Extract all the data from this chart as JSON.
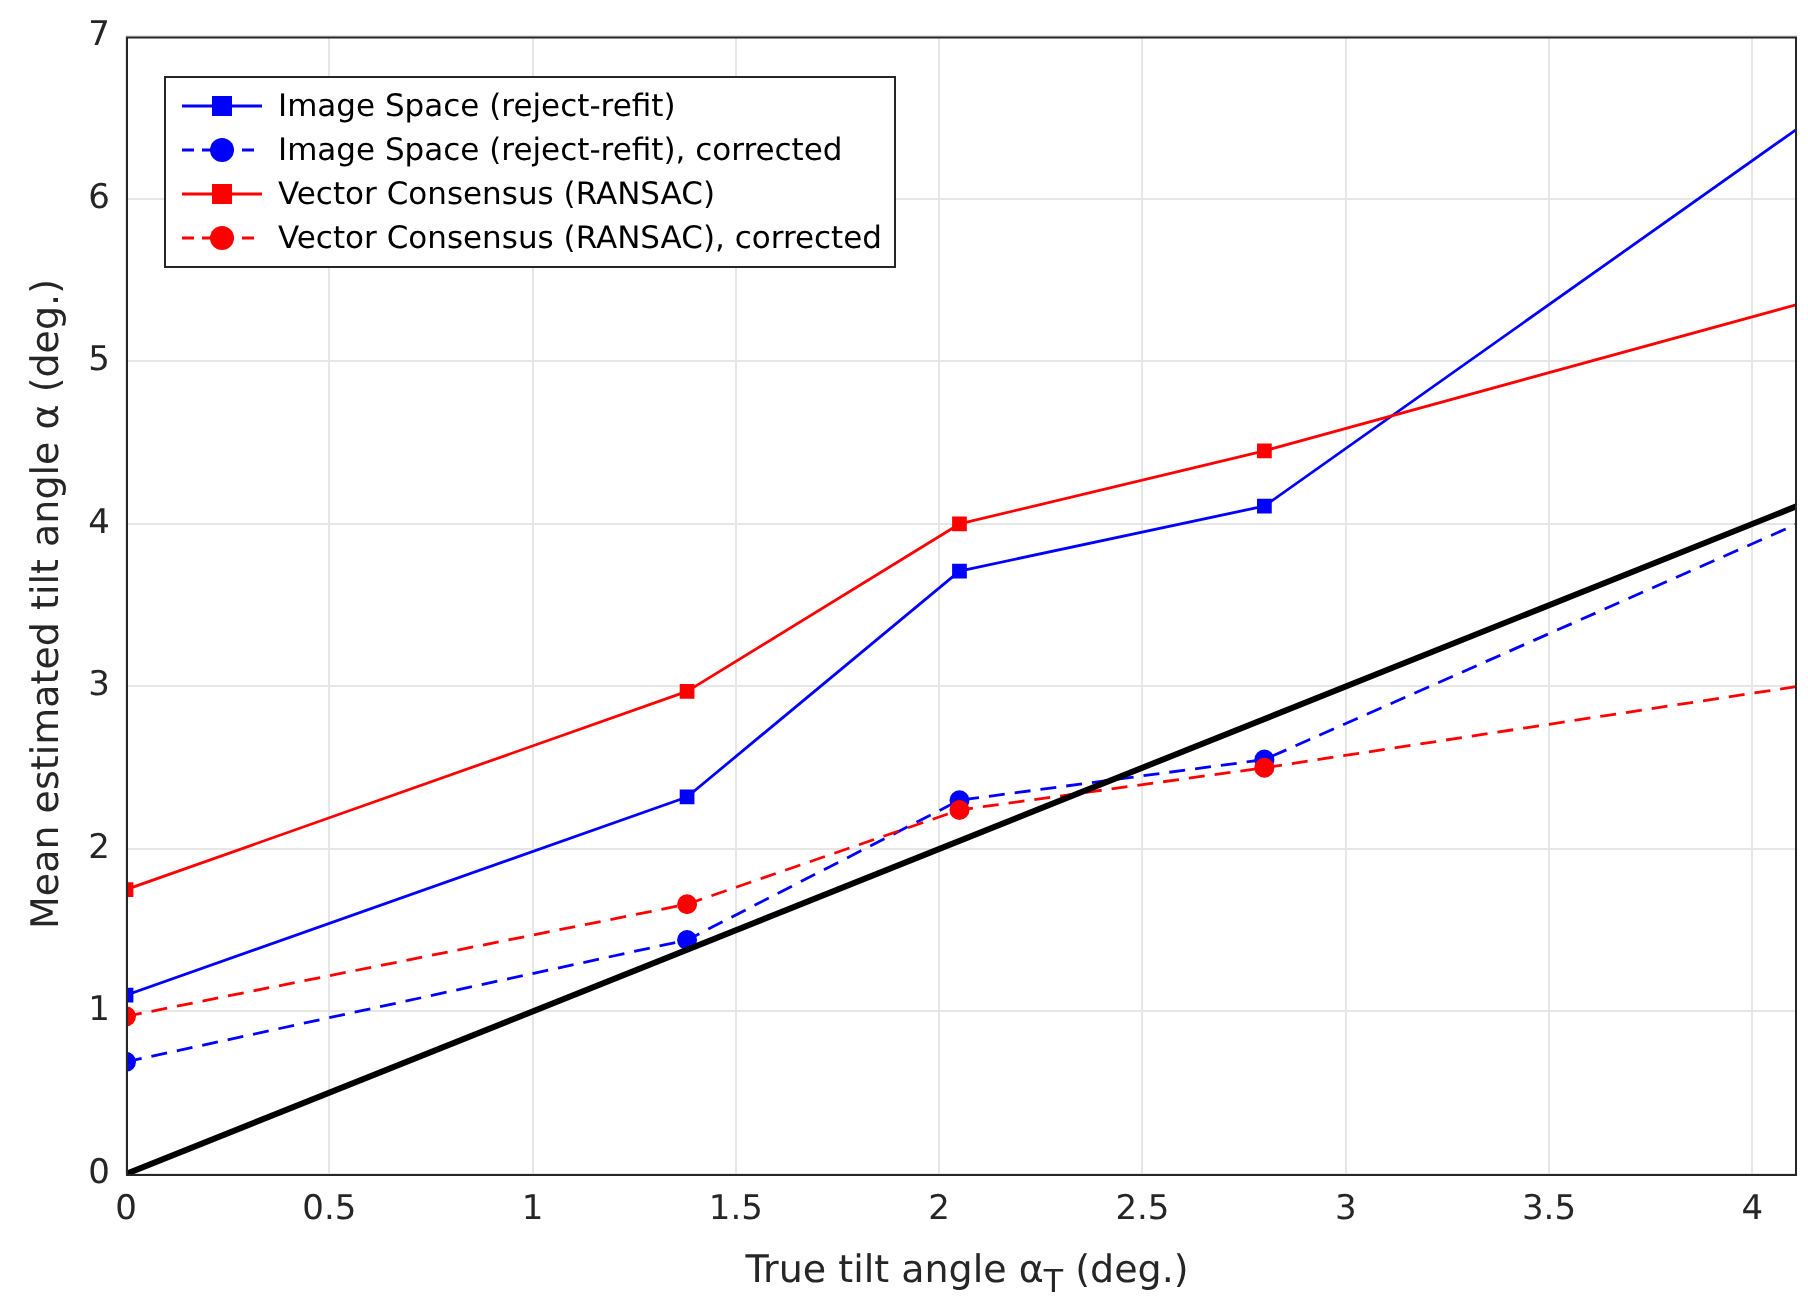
{
  "chart_data": {
    "type": "line",
    "xlabel": "True tilt angle α$_{T}$ (deg.)",
    "ylabel": "Mean estimated tilt angle α (deg.)",
    "xlim": [
      0,
      4.11
    ],
    "xticks": [
      0,
      0.5,
      1,
      1.5,
      2,
      2.5,
      3,
      3.5,
      4
    ],
    "ylim": [
      0,
      7
    ],
    "yticks": [
      0,
      1,
      2,
      3,
      4,
      5,
      6,
      7
    ],
    "grid": true,
    "legend": "top left",
    "series": [
      {
        "name": "Image Space (reject-refit)",
        "color": "#0000ff",
        "x": [
          0,
          1.38,
          2.05,
          2.8,
          4.11
        ],
        "values": [
          1.1,
          2.32,
          3.71,
          4.11,
          6.43
        ],
        "marker": "square",
        "line_style": "solid"
      },
      {
        "name": "Image Space (reject-refit), corrected",
        "color": "#0000ff",
        "x": [
          0,
          1.38,
          2.05,
          2.8,
          4.11
        ],
        "values": [
          0.69,
          1.44,
          2.3,
          2.55,
          4.0
        ],
        "marker": "circle",
        "line_style": "dashed"
      },
      {
        "name": "Vector Consensus (RANSAC)",
        "color": "#ff0000",
        "x": [
          0,
          1.38,
          2.05,
          2.8,
          4.11
        ],
        "values": [
          1.75,
          2.97,
          4.0,
          4.45,
          5.35
        ],
        "marker": "square",
        "line_style": "solid"
      },
      {
        "name": "Vector Consensus (RANSAC), corrected",
        "color": "#ff0000",
        "x": [
          0,
          1.38,
          2.05,
          2.8,
          4.11
        ],
        "values": [
          0.97,
          1.66,
          2.24,
          2.5,
          3.0
        ],
        "marker": "circle",
        "line_style": "dashed"
      },
      {
        "color": "#000000",
        "x": [
          0,
          4.11
        ],
        "values": [
          0,
          4.11
        ],
        "marker": "none",
        "line_style": "solid"
      }
    ]
  }
}
